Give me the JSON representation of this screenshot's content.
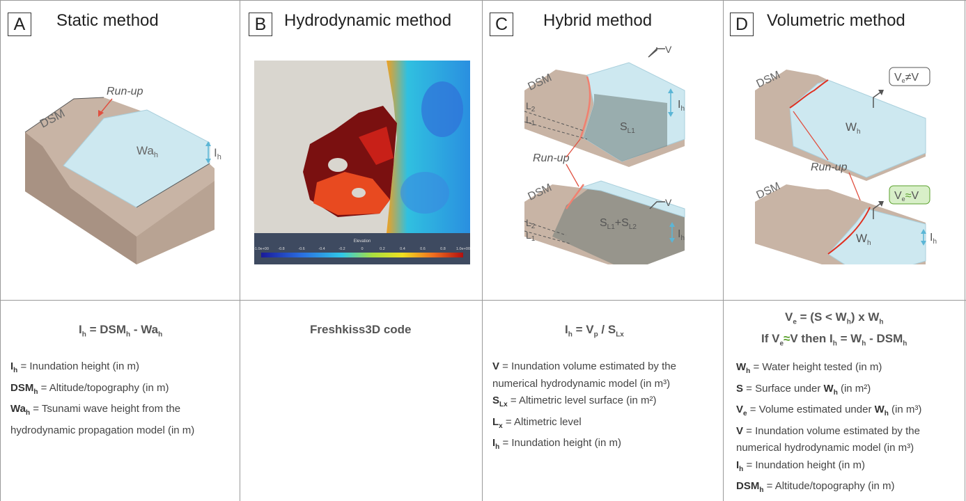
{
  "panels": {
    "a": {
      "letter": "A",
      "title": "Static method",
      "diagram": {
        "dsm": "DSM",
        "runup": "Run-up",
        "wa": "Wa",
        "wa_sub": "h",
        "ih": "I",
        "ih_sub": "h"
      },
      "formula": {
        "lhs": "I",
        "lhs_sub": "h",
        "eq": " = DSM",
        "dsm_sub": "h",
        "minus": " - Wa",
        "wa_sub": "h"
      },
      "defs": [
        {
          "term": "I",
          "sub": "h",
          "text": " = Inundation height (in m)"
        },
        {
          "term": "DSM",
          "sub": "h",
          "text": " = Altitude/topography (in m)"
        },
        {
          "term": "Wa",
          "sub": "h",
          "text": " = Tsunami wave height from the"
        },
        {
          "term": "",
          "sub": "",
          "text": "hydrodynamic propagation model (in m)"
        }
      ]
    },
    "b": {
      "letter": "B",
      "title": "Hydrodynamic method",
      "formula": "Freshkiss3D code",
      "colorbar": {
        "title": "Elevation",
        "ticks": [
          "-1.0e+00",
          "-0.8",
          "-0.6",
          "-0.4",
          "-0.2",
          "0",
          "0.2",
          "0.4",
          "0.6",
          "0.8",
          "1.0e+00"
        ]
      }
    },
    "c": {
      "letter": "C",
      "title": "Hybrid method",
      "diagram": {
        "dsm": "DSM",
        "v": "V",
        "ih": "I",
        "ih_sub": "h",
        "l2": "L",
        "l2_sub": "2",
        "l1": "L",
        "l1_sub": "1",
        "s": "S",
        "sl1_sub": "L1",
        "plus": "+S",
        "sl2_sub": "L2",
        "runup": "Run-up"
      },
      "formula": {
        "lhs": "I",
        "lhs_sub": "h",
        "eq": " = V",
        "v_sub": "p",
        "div": " / S",
        "s_sub": "Lx"
      },
      "defs": [
        {
          "term": "V",
          "sub": "",
          "text": " = Inundation volume estimated by the"
        },
        {
          "term": "",
          "sub": "",
          "text": "numerical hydrodynamic model (in m³)"
        },
        {
          "term": "S",
          "sub": "Lx",
          "text": " = Altimetric level surface (in m²)"
        },
        {
          "term": "L",
          "sub": "x",
          "text": " = Altimetric level"
        },
        {
          "term": "I",
          "sub": "h",
          "text": " = Inundation height (in m)"
        }
      ]
    },
    "d": {
      "letter": "D",
      "title": "Volumetric method",
      "diagram": {
        "dsm": "DSM",
        "w": "W",
        "w_sub": "h",
        "ve": "V",
        "ve_sub": "e",
        "neq": "≠",
        "approx": "≈",
        "v": "V",
        "runup": "Run-up",
        "ih": "I",
        "ih_sub": "h"
      },
      "formula1": {
        "lhs": "V",
        "lhs_sub": "e",
        "eq": " = (S < W",
        "w_sub": "h",
        "rest": ") x W",
        "w2_sub": "h"
      },
      "formula2": {
        "if": "If V",
        "ve_sub": "e",
        "approx": "≈",
        "then": "V then I",
        "ih_sub": "h",
        "eq": " = W",
        "w_sub": "h",
        "minus": " - DSM",
        "dsm_sub": "h"
      },
      "defs": [
        {
          "term": "W",
          "sub": "h",
          "text": " = Water height tested (in m)"
        },
        {
          "term": "S",
          "sub": "",
          "text": " = Surface under ",
          "term2": "W",
          "sub2": "h",
          "text2": " (in m²)"
        },
        {
          "term": "V",
          "sub": "e",
          "text": " = Volume estimated under ",
          "term2": "W",
          "sub2": "h",
          "text2": " (in m³)"
        },
        {
          "term": "V",
          "sub": "",
          "text": " = Inundation volume estimated by the"
        },
        {
          "term": "",
          "sub": "",
          "text": "numerical hydrodynamic model (in m³)"
        },
        {
          "term": "I",
          "sub": "h",
          "text": " = Inundation height (in m)"
        },
        {
          "term": "DSM",
          "sub": "h",
          "text": " = Altitude/topography (in m)"
        }
      ]
    }
  },
  "colors": {
    "water": "#cde8f0",
    "terrain": "#c8b4a5",
    "arrow": "#e05040",
    "approx": "#5aa02c",
    "ih_arrow": "#5bb6d6"
  }
}
